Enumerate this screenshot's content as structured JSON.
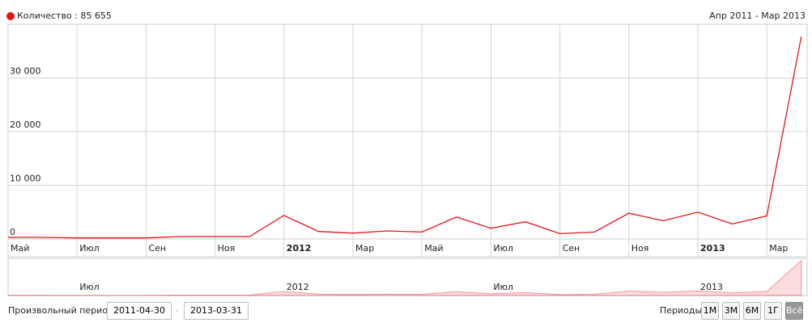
{
  "chart_data": {
    "type": "line",
    "legend": "Количество : 85 655",
    "range_label": "Апр 2011 - Мар 2013",
    "categories": [
      "Май",
      null,
      "Июл",
      null,
      "Сен",
      null,
      "Ноя",
      null,
      "2012",
      null,
      "Мар",
      null,
      "Май",
      null,
      "Июл",
      null,
      "Сен",
      null,
      "Ноя",
      null,
      "2013",
      null,
      "Мар",
      null
    ],
    "series": [
      {
        "name": "Количество",
        "color": "#e8121b",
        "values": [
          300,
          300,
          200,
          200,
          200,
          450,
          450,
          450,
          4400,
          1400,
          1100,
          1500,
          1300,
          4100,
          2000,
          3200,
          1000,
          1300,
          4800,
          3400,
          5000,
          2800,
          4300,
          37700
        ]
      }
    ],
    "ylim": [
      0,
      40000
    ],
    "yticks": [
      0,
      {
        "value": 10000,
        "label": "10 000"
      },
      {
        "value": 20000,
        "label": "20 000"
      },
      {
        "value": 30000,
        "label": "30 000"
      }
    ],
    "grid": true
  },
  "controls": {
    "custom_period_label": "Произвольный период:",
    "from": "2011-04-30",
    "separator": "-",
    "to": "2013-03-31",
    "periods_label": "Периоды:",
    "periods": [
      "1М",
      "3М",
      "6М",
      "1Г",
      "Всё"
    ],
    "active_period": 4
  }
}
